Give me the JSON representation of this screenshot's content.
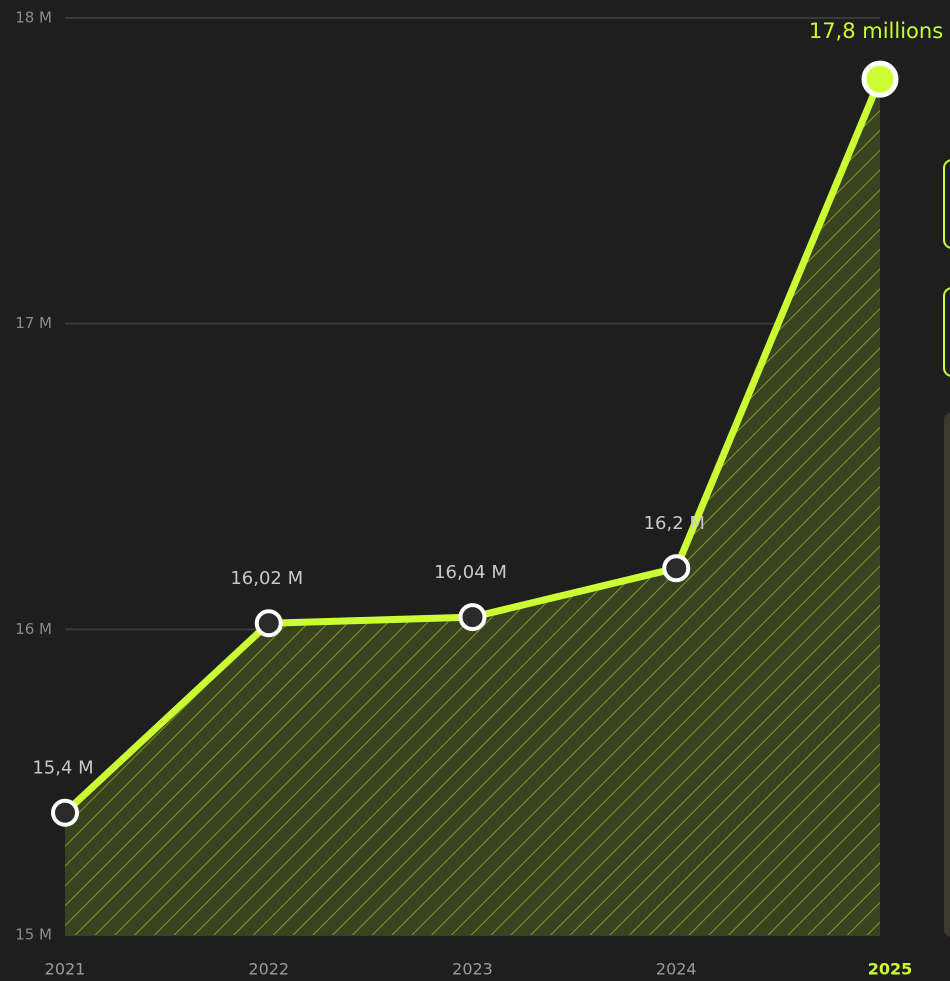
{
  "chart_data": {
    "type": "line",
    "categories": [
      "2021",
      "2022",
      "2023",
      "2024",
      "2025"
    ],
    "series": [
      {
        "color": "#ccff33",
        "values": [
          15.4,
          16.02,
          16.04,
          16.2,
          17.8
        ],
        "value_labels": [
          "15,4 M",
          "16,02 M",
          "16,04 M",
          "16,2 M",
          "17,8 millions"
        ]
      }
    ],
    "ylim": [
      15,
      18
    ],
    "yticks": [
      {
        "value": 15,
        "label": "15 M"
      },
      {
        "value": 16,
        "label": "16 M"
      },
      {
        "value": 17,
        "label": "17 M"
      },
      {
        "value": 18,
        "label": "18 M"
      }
    ],
    "grid": true
  }
}
